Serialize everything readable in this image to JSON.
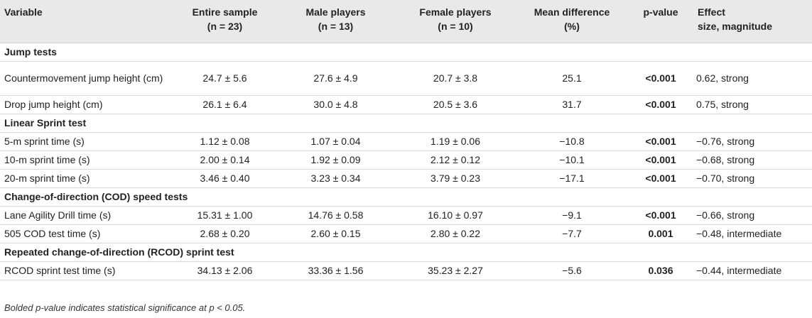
{
  "headers": {
    "variable": "Variable",
    "entire_sample": "Entire sample",
    "entire_sample_n": "(n = 23)",
    "male": "Male players",
    "male_n": "(n = 13)",
    "female": "Female players",
    "female_n": "(n = 10)",
    "mean_diff": "Mean difference",
    "mean_diff_unit": "(%)",
    "pvalue": "p-value",
    "effect_line1": "Effect",
    "effect_line2": "size, magnitude"
  },
  "sections": [
    {
      "title": "Jump tests",
      "rows": [
        {
          "variable": "Countermovement jump height (cm)",
          "entire": "24.7 ± 5.6",
          "male": "27.6 ± 4.9",
          "female": "20.7 ± 3.8",
          "diff": "25.1",
          "p": "<0.001",
          "effect": "0.62, strong"
        },
        {
          "variable": "Drop jump height (cm)",
          "entire": "26.1 ± 6.4",
          "male": "30.0 ± 4.8",
          "female": "20.5 ± 3.6",
          "diff": "31.7",
          "p": "<0.001",
          "effect": "0.75, strong"
        }
      ]
    },
    {
      "title": "Linear Sprint test",
      "rows": [
        {
          "variable": "5-m sprint time (s)",
          "entire": "1.12 ± 0.08",
          "male": "1.07 ± 0.04",
          "female": "1.19 ± 0.06",
          "diff": "−10.8",
          "p": "<0.001",
          "effect": "−0.76, strong"
        },
        {
          "variable": "10-m sprint time (s)",
          "entire": "2.00 ± 0.14",
          "male": "1.92 ± 0.09",
          "female": "2.12 ± 0.12",
          "diff": "−10.1",
          "p": "<0.001",
          "effect": "−0.68, strong"
        },
        {
          "variable": "20-m sprint time (s)",
          "entire": "3.46 ± 0.40",
          "male": "3.23 ± 0.34",
          "female": "3.79 ± 0.23",
          "diff": "−17.1",
          "p": "<0.001",
          "effect": "−0.70, strong"
        }
      ]
    },
    {
      "title": "Change-of-direction (COD) speed tests",
      "rows": [
        {
          "variable": "Lane Agility Drill time (s)",
          "entire": "15.31 ± 1.00",
          "male": "14.76 ± 0.58",
          "female": "16.10 ± 0.97",
          "diff": "−9.1",
          "p": "<0.001",
          "effect": "−0.66, strong"
        },
        {
          "variable": "505 COD test time (s)",
          "entire": "2.68 ± 0.20",
          "male": "2.60 ± 0.15",
          "female": "2.80 ± 0.22",
          "diff": "−7.7",
          "p": "0.001",
          "effect": "−0.48, intermediate"
        }
      ]
    },
    {
      "title": "Repeated change-of-direction (RCOD) sprint test",
      "rows": [
        {
          "variable": "RCOD sprint test time (s)",
          "entire": "34.13 ± 2.06",
          "male": "33.36 ± 1.56",
          "female": "35.23 ± 2.27",
          "diff": "−5.6",
          "p": "0.036",
          "effect": "−0.44, intermediate"
        }
      ]
    }
  ],
  "footnote": "Bolded p-value indicates statistical significance at p < 0.05."
}
